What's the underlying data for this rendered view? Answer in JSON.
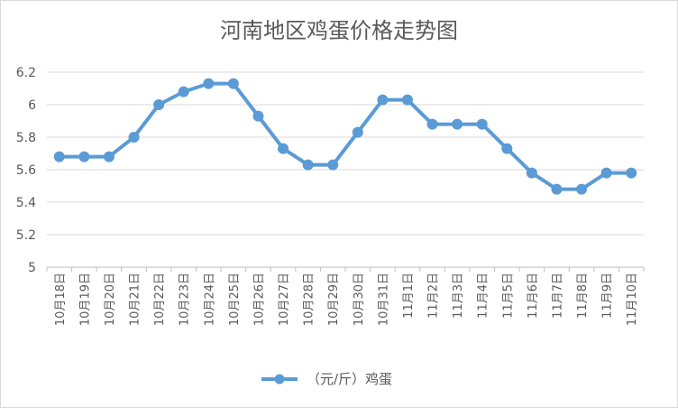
{
  "chart_data": {
    "type": "line",
    "title": "河南地区鸡蛋价格走势图",
    "xlabel": "",
    "ylabel": "",
    "ylim": [
      5,
      6.2
    ],
    "yticks": [
      "5",
      "5.2",
      "5.4",
      "5.6",
      "5.8",
      "6",
      "6.2"
    ],
    "grid": true,
    "legend_position": "bottom",
    "categories": [
      "10月18日",
      "10月19日",
      "10月20日",
      "10月21日",
      "10月22日",
      "10月23日",
      "10月24日",
      "10月25日",
      "10月26日",
      "10月27日",
      "10月28日",
      "10月29日",
      "10月30日",
      "10月31日",
      "11月1日",
      "11月2日",
      "11月3日",
      "11月4日",
      "11月5日",
      "11月6日",
      "11月7日",
      "11月8日",
      "11月9日",
      "11月10日"
    ],
    "series": [
      {
        "name": "（元/斤）鸡蛋",
        "color": "#5b9bd5",
        "values": [
          5.68,
          5.68,
          5.68,
          5.8,
          6.0,
          6.08,
          6.13,
          6.13,
          5.93,
          5.73,
          5.63,
          5.63,
          5.83,
          6.03,
          6.03,
          5.88,
          5.88,
          5.88,
          5.73,
          5.58,
          5.48,
          5.48,
          5.58,
          5.58
        ]
      }
    ]
  }
}
